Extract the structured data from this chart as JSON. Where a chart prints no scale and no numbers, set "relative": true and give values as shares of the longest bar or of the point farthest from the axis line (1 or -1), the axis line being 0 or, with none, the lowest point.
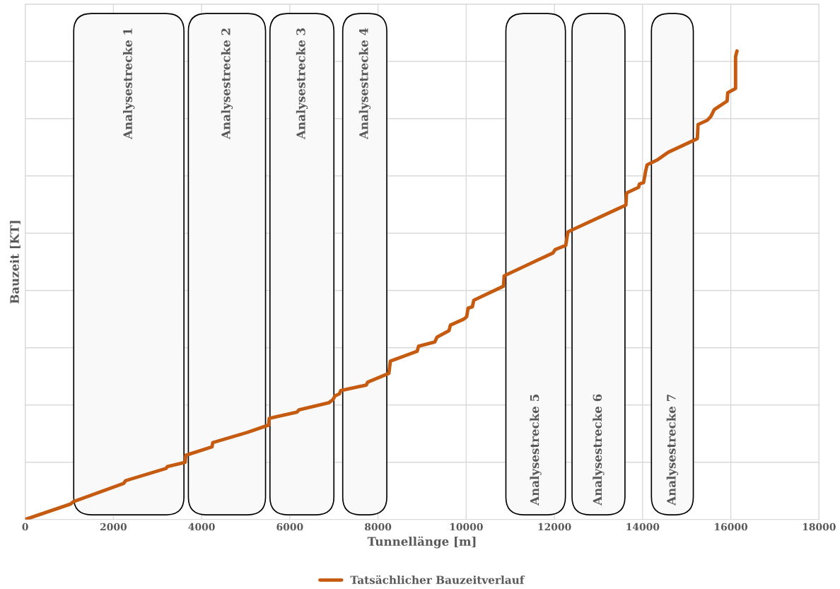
{
  "chart_data": {
    "type": "line",
    "relative": true,
    "xlabel": "Tunnellänge [m]",
    "ylabel": "Bauzeit [KT]",
    "xlim": [
      0,
      18000
    ],
    "xticks": [
      0,
      2000,
      4000,
      6000,
      8000,
      10000,
      12000,
      14000,
      16000,
      18000
    ],
    "grid": true,
    "legend": "bottom",
    "marker": "none",
    "line_style": "solid",
    "series": [
      {
        "name": "Tatsächlicher Bauzeitverlauf",
        "color": "#c55a11",
        "x": [
          0,
          1027,
          1091,
          2230,
          2278,
          3193,
          3225,
          3626,
          3642,
          4236,
          4252,
          5038,
          5439,
          5519,
          5535,
          6161,
          6209,
          6883,
          6979,
          7027,
          7123,
          7155,
          7733,
          7765,
          8247,
          8279,
          8888,
          8920,
          9289,
          9337,
          9610,
          9642,
          9931,
          9979,
          10011,
          10043,
          10140,
          10172,
          10845,
          10861,
          11968,
          12017,
          12257,
          12306,
          13413,
          13621,
          13637,
          13910,
          13926,
          14022,
          14070,
          14102,
          14343,
          14584,
          15177,
          15241,
          15257,
          15466,
          15546,
          15626,
          15867,
          15916,
          15931,
          16108,
          16108,
          16140
        ],
        "values": [
          0,
          0.033,
          0.038,
          0.077,
          0.083,
          0.109,
          0.113,
          0.122,
          0.137,
          0.155,
          0.164,
          0.186,
          0.199,
          0.201,
          0.216,
          0.229,
          0.234,
          0.249,
          0.256,
          0.264,
          0.268,
          0.275,
          0.287,
          0.293,
          0.312,
          0.338,
          0.359,
          0.37,
          0.379,
          0.389,
          0.403,
          0.415,
          0.427,
          0.43,
          0.433,
          0.451,
          0.454,
          0.468,
          0.498,
          0.52,
          0.569,
          0.576,
          0.585,
          0.614,
          0.662,
          0.671,
          0.697,
          0.709,
          0.716,
          0.719,
          0.744,
          0.757,
          0.768,
          0.784,
          0.81,
          0.813,
          0.843,
          0.852,
          0.86,
          0.875,
          0.89,
          0.893,
          0.911,
          0.92,
          0.988,
          1
        ]
      }
    ],
    "bands": [
      {
        "axis": "x",
        "from": 1100,
        "to": 3600,
        "label": "Analysestrecke 1",
        "color": "#f9f9f9"
      },
      {
        "axis": "x",
        "from": 3700,
        "to": 5450,
        "label": "Analysestrecke 2",
        "color": "#f9f9f9"
      },
      {
        "axis": "x",
        "from": 5550,
        "to": 7000,
        "label": "Analysestrecke 3",
        "color": "#f9f9f9"
      },
      {
        "axis": "x",
        "from": 7200,
        "to": 8200,
        "label": "Analysestrecke 4",
        "color": "#f9f9f9"
      },
      {
        "axis": "x",
        "from": 10900,
        "to": 12250,
        "label": "Analysestrecke 5",
        "color": "#f9f9f9"
      },
      {
        "axis": "x",
        "from": 12400,
        "to": 13600,
        "label": "Analysestrecke 6",
        "color": "#f9f9f9"
      },
      {
        "axis": "x",
        "from": 14200,
        "to": 15150,
        "label": "Analysestrecke 7",
        "color": "#f9f9f9"
      }
    ]
  }
}
